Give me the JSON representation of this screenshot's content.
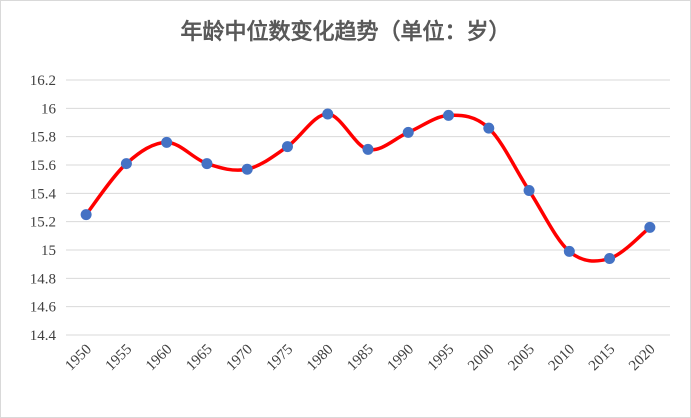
{
  "chart_data": {
    "type": "line",
    "title": "年龄中位数变化趋势（单位：岁）",
    "xlabel": "",
    "ylabel": "",
    "categories": [
      "1950",
      "1955",
      "1960",
      "1965",
      "1970",
      "1975",
      "1980",
      "1985",
      "1990",
      "1995",
      "2000",
      "2005",
      "2010",
      "2015",
      "2020"
    ],
    "series": [
      {
        "values": [
          15.25,
          15.61,
          15.76,
          15.61,
          15.57,
          15.73,
          15.96,
          15.71,
          15.83,
          15.95,
          15.86,
          15.42,
          14.99,
          14.94,
          15.16
        ]
      }
    ],
    "ylim": [
      14.4,
      16.2
    ],
    "yticks": [
      "14.4",
      "14.6",
      "14.8",
      "15",
      "15.2",
      "15.4",
      "15.6",
      "15.8",
      "16",
      "16.2"
    ],
    "grid": true,
    "smooth": true,
    "colors": {
      "line": "#ff0000",
      "marker": "#4472c4",
      "grid": "#d9d9d9"
    }
  }
}
